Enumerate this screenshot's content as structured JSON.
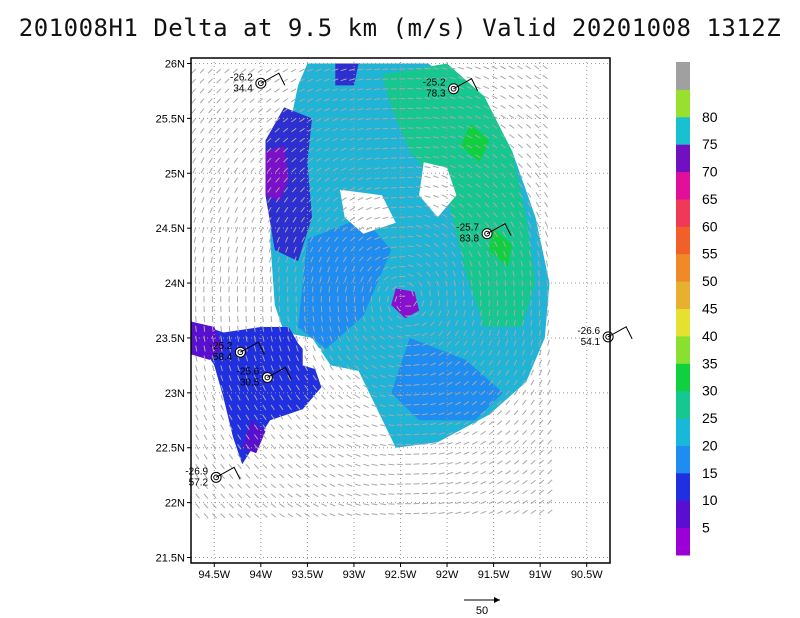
{
  "title": "201008H1 Delta at 9.5 km (m/s) Valid 20201008 1312Z",
  "chart_data": {
    "type": "heatmap",
    "title": "201008H1 Delta at 9.5 km (m/s) Valid 20201008 1312Z",
    "xlabel": "",
    "ylabel": "",
    "xlim": [
      -94.75,
      -90.25
    ],
    "ylim": [
      21.45,
      26.05
    ],
    "x_ticks": [
      "94.5W",
      "94W",
      "93.5W",
      "93W",
      "92.5W",
      "92W",
      "91.5W",
      "91W",
      "90.5W"
    ],
    "y_ticks": [
      "21.5N",
      "22N",
      "22.5N",
      "23N",
      "23.5N",
      "24N",
      "24.5N",
      "25N",
      "25.5N",
      "26N"
    ],
    "grid": true,
    "colorbar": {
      "labels": [
        "5",
        "10",
        "15",
        "20",
        "25",
        "30",
        "35",
        "40",
        "45",
        "50",
        "55",
        "60",
        "65",
        "70",
        "75",
        "80"
      ],
      "colors": [
        "#9b00d6",
        "#5a0fd0",
        "#2030e0",
        "#1e8cf0",
        "#18b8d8",
        "#16c890",
        "#10d040",
        "#8ae030",
        "#e6e030",
        "#e8b030",
        "#f08a28",
        "#f06028",
        "#f03858",
        "#e0109a",
        "#7010c0",
        "#18c0d0",
        "#98e030",
        "#a0a0a0"
      ]
    },
    "observations": [
      {
        "temp": "-26.2",
        "wind": "34.4",
        "lon": -94.0,
        "lat": 25.82
      },
      {
        "temp": "-25.2",
        "wind": "78.3",
        "lon": -91.93,
        "lat": 25.77
      },
      {
        "temp": "-25.7",
        "wind": "83.8",
        "lon": -91.57,
        "lat": 24.45
      },
      {
        "temp": "-26.6",
        "wind": "54.1",
        "lon": -90.27,
        "lat": 23.51
      },
      {
        "temp": "-25.2",
        "wind": "58.4",
        "lon": -94.22,
        "lat": 23.37
      },
      {
        "temp": "-25.6",
        "wind": "30.5",
        "lon": -93.93,
        "lat": 23.14
      },
      {
        "temp": "-26.9",
        "wind": "57.2",
        "lon": -94.48,
        "lat": 22.23
      }
    ],
    "reference_vector_label": "50"
  }
}
